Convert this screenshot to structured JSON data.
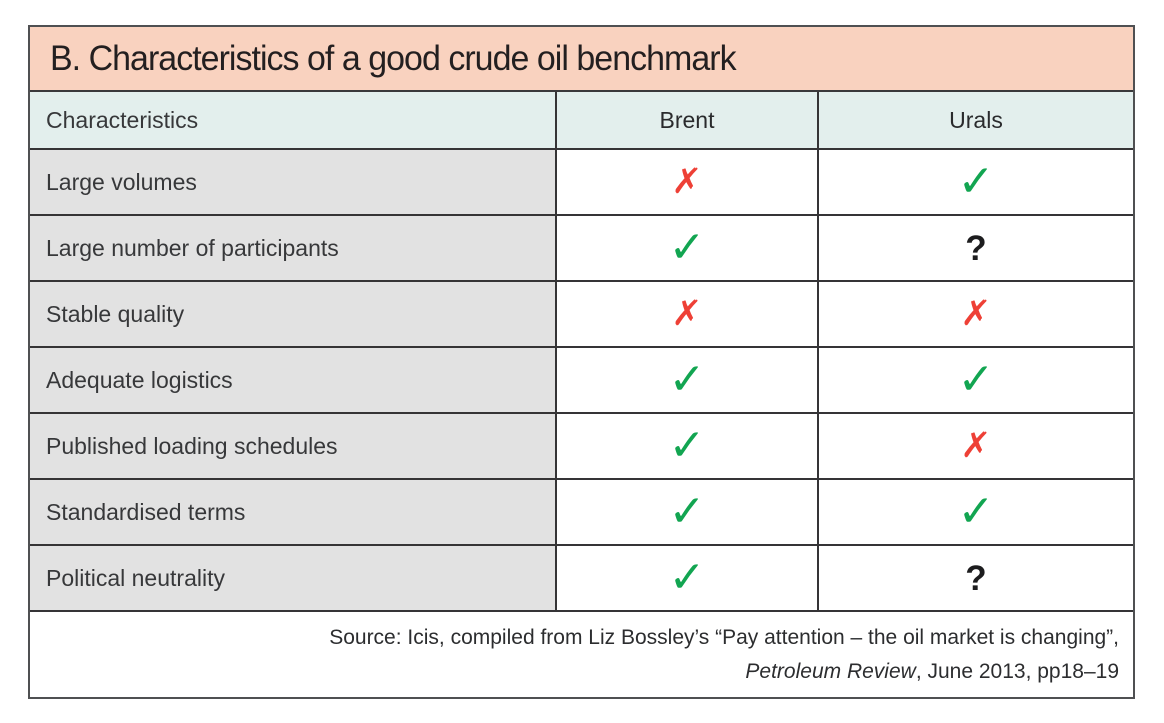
{
  "title": "B. Characteristics of a good crude oil benchmark",
  "table": {
    "headers": {
      "characteristics": "Characteristics",
      "brent": "Brent",
      "urals": "Urals"
    },
    "rows": [
      {
        "label": "Large volumes",
        "brent": {
          "glyph": "✗",
          "type": "cross"
        },
        "urals": {
          "glyph": "✓",
          "type": "check"
        }
      },
      {
        "label": "Large number of participants",
        "brent": {
          "glyph": "✓",
          "type": "check"
        },
        "urals": {
          "glyph": "?",
          "type": "question"
        }
      },
      {
        "label": "Stable quality",
        "brent": {
          "glyph": "✗",
          "type": "cross"
        },
        "urals": {
          "glyph": "✗",
          "type": "cross"
        }
      },
      {
        "label": "Adequate logistics",
        "brent": {
          "glyph": "✓",
          "type": "check"
        },
        "urals": {
          "glyph": "✓",
          "type": "check"
        }
      },
      {
        "label": "Published loading schedules",
        "brent": {
          "glyph": "✓",
          "type": "check"
        },
        "urals": {
          "glyph": "✗",
          "type": "cross"
        }
      },
      {
        "label": "Standardised terms",
        "brent": {
          "glyph": "✓",
          "type": "check"
        },
        "urals": {
          "glyph": "✓",
          "type": "check"
        }
      },
      {
        "label": "Political neutrality",
        "brent": {
          "glyph": "✓",
          "type": "check"
        },
        "urals": {
          "glyph": "?",
          "type": "question"
        }
      }
    ]
  },
  "legend": {
    "check_meaning": "yes",
    "cross_meaning": "no",
    "question_meaning": "uncertain"
  },
  "colors": {
    "title_bg": "#f9d2bf",
    "header_bg": "#e3efed",
    "label_bg": "#e2e2e2",
    "check_green": "#12a551",
    "cross_red": "#ee4036",
    "question_dark": "#1c1c1e"
  },
  "source": {
    "line1": "Source: Icis, compiled from Liz Bossley’s “Pay attention – the oil market is changing”,",
    "line2_italic": "Petroleum Review",
    "line2_rest": ", June 2013, pp18–19"
  }
}
